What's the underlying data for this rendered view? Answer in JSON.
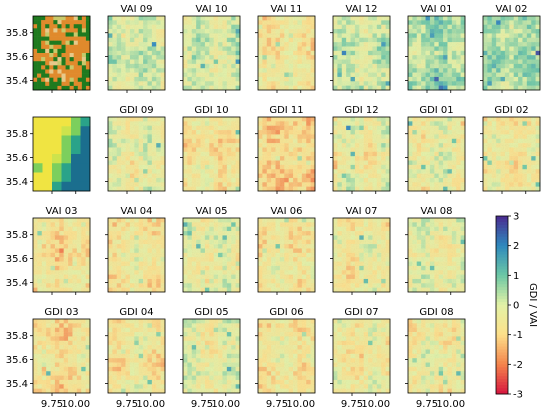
{
  "chart_data": {
    "type": "heatmap",
    "rows": [
      {
        "lead_panel": "landcover",
        "panels": [
          "VAI 09",
          "VAI 10",
          "VAI 11",
          "VAI 12",
          "VAI 01",
          "VAI 02"
        ]
      },
      {
        "lead_panel": "coarse_grid",
        "panels": [
          "GDI 09",
          "GDI 10",
          "GDI 11",
          "GDI 12",
          "GDI 01",
          "GDI 02"
        ]
      },
      {
        "lead_panel": null,
        "panels": [
          "VAI 03",
          "VAI 04",
          "VAI 05",
          "VAI 06",
          "VAI 07",
          "VAI 08"
        ]
      },
      {
        "lead_panel": null,
        "panels": [
          "GDI 03",
          "GDI 04",
          "GDI 05",
          "GDI 06",
          "GDI 07",
          "GDI 08"
        ]
      }
    ],
    "y_ticks": [
      "35.4",
      "35.6",
      "35.8"
    ],
    "x_ticks": [
      "9.75",
      "10.00"
    ],
    "y_range": [
      35.32,
      35.94
    ],
    "x_range": [
      9.55,
      10.15
    ],
    "colorbar": {
      "label": "GDI / VAI",
      "min": -3,
      "max": 3,
      "ticks": [
        "-3",
        "-2",
        "-1",
        "0",
        "1",
        "2",
        "3"
      ],
      "colormap": "RdYlGnBu (Spectral-like)",
      "colors": [
        "#d7163f",
        "#f4844c",
        "#fde08a",
        "#e3f2a6",
        "#6cc7a5",
        "#2f89bd",
        "#4a2a8f"
      ]
    },
    "landcover_colors": [
      "#1f7a1f",
      "#e08a2c",
      "#c9c96a",
      "#e7c98a"
    ],
    "coarse_grid_colors": [
      "#f0e442",
      "#cde34c",
      "#7ccf5d",
      "#2aa389",
      "#1b6e8e"
    ],
    "panel_mean_levels": {
      "VAI 09": 0.1,
      "VAI 10": 0.0,
      "VAI 11": -0.6,
      "VAI 12": 0.1,
      "VAI 01": 0.5,
      "VAI 02": 0.5,
      "GDI 09": -0.3,
      "GDI 10": -0.7,
      "GDI 11": -1.0,
      "GDI 12": -0.4,
      "GDI 01": -0.3,
      "GDI 02": -0.6,
      "VAI 03": -0.8,
      "VAI 04": -0.6,
      "VAI 05": -0.3,
      "VAI 06": -0.6,
      "VAI 07": -0.5,
      "VAI 08": -0.3,
      "GDI 03": -0.8,
      "GDI 04": -0.6,
      "GDI 05": -0.3,
      "GDI 06": -0.6,
      "GDI 07": -0.6,
      "GDI 08": -0.4
    },
    "grid": false,
    "legend_placement": "right"
  }
}
